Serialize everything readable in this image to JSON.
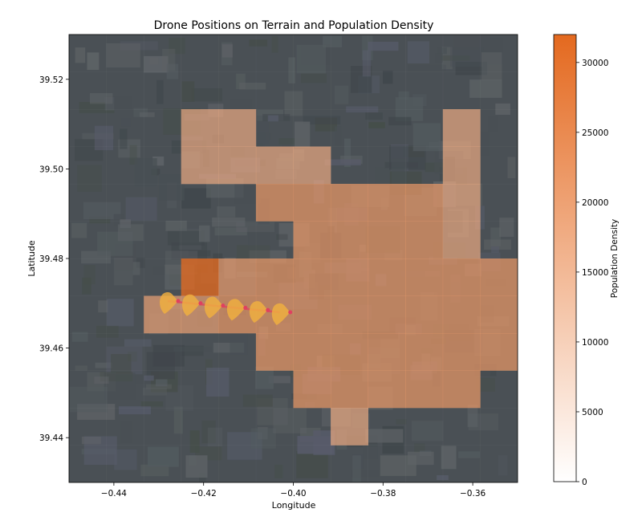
{
  "chart_data": {
    "type": "heatmap",
    "title": "Drone Positions on Terrain and Population Density",
    "xlabel": "Longitude",
    "ylabel": "Latitude",
    "xlim": [
      -0.45,
      -0.35
    ],
    "ylim": [
      39.43,
      39.53
    ],
    "xticks": [
      -0.44,
      -0.42,
      -0.4,
      -0.38,
      -0.36
    ],
    "xtick_labels": [
      "−0.44",
      "−0.42",
      "−0.40",
      "−0.38",
      "−0.36"
    ],
    "yticks": [
      39.44,
      39.46,
      39.48,
      39.5,
      39.52
    ],
    "ytick_labels": [
      "39.44",
      "39.46",
      "39.48",
      "39.50",
      "39.52"
    ],
    "grid": false,
    "background": "satellite imagery of the city of Valencia",
    "colorbar": {
      "label": "Population Density",
      "range": [
        0,
        32000
      ],
      "ticks": [
        0,
        5000,
        10000,
        15000,
        20000,
        25000,
        30000
      ],
      "tick_labels": [
        "0",
        "5000",
        "10000",
        "15000",
        "20000",
        "25000",
        "30000"
      ],
      "color_low": "#ffffff",
      "color_high": "#e4691f"
    },
    "grid_cells": {
      "lon_start": -0.45,
      "lat_start": 39.43,
      "cell_size": 0.008333,
      "rows_top_to_bottom": [
        [
          0,
          0,
          0,
          0,
          0,
          0,
          0,
          0,
          0,
          0,
          0,
          0
        ],
        [
          0,
          0,
          0,
          0,
          0,
          0,
          0,
          0,
          0,
          0,
          0,
          0
        ],
        [
          0,
          0,
          0,
          17000,
          17000,
          0,
          0,
          0,
          0,
          0,
          17000,
          0
        ],
        [
          0,
          0,
          0,
          17000,
          17000,
          17000,
          17000,
          0,
          0,
          0,
          17000,
          0
        ],
        [
          0,
          0,
          0,
          0,
          0,
          21000,
          21000,
          21000,
          21000,
          21000,
          17000,
          0
        ],
        [
          0,
          0,
          0,
          0,
          0,
          0,
          21000,
          21000,
          21000,
          21000,
          17000,
          0
        ],
        [
          0,
          0,
          0,
          31000,
          20000,
          21000,
          21000,
          21000,
          21000,
          21000,
          21000,
          21000
        ],
        [
          0,
          0,
          19000,
          19000,
          21000,
          21000,
          21000,
          21000,
          21000,
          21000,
          21000,
          21000
        ],
        [
          0,
          0,
          0,
          0,
          0,
          21000,
          21000,
          21000,
          21000,
          21000,
          21000,
          21000
        ],
        [
          0,
          0,
          0,
          0,
          0,
          0,
          21000,
          21000,
          21000,
          21000,
          21000,
          0
        ],
        [
          0,
          0,
          0,
          0,
          0,
          0,
          0,
          17000,
          0,
          0,
          0,
          0
        ],
        [
          0,
          0,
          0,
          0,
          0,
          0,
          0,
          0,
          0,
          0,
          0,
          0
        ]
      ]
    },
    "drones": {
      "lon": [
        -0.428,
        -0.423,
        -0.418,
        -0.413,
        -0.408,
        -0.403
      ],
      "lat": [
        39.4705,
        39.47,
        39.4695,
        39.469,
        39.4685,
        39.468
      ],
      "marker_color": "#f0b040",
      "path_color": "#e04060"
    }
  }
}
